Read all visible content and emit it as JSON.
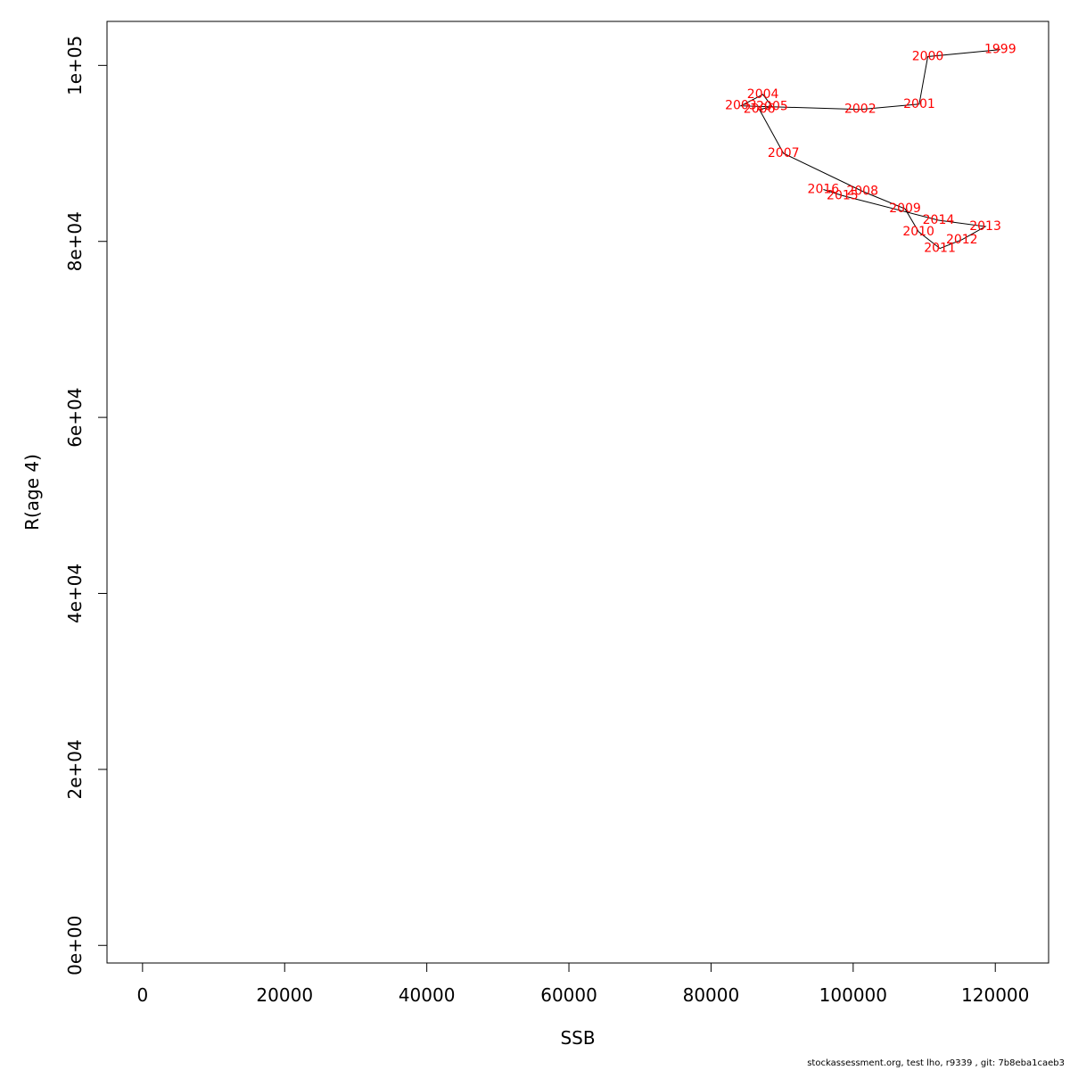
{
  "chart_data": {
    "type": "line",
    "xlabel": "SSB",
    "ylabel": "R(age 4)",
    "xlim": [
      -5000,
      127500
    ],
    "ylim": [
      -2000,
      105000
    ],
    "x_ticks": [
      0,
      20000,
      40000,
      60000,
      80000,
      100000,
      120000
    ],
    "x_tick_labels": [
      "0",
      "20000",
      "40000",
      "60000",
      "80000",
      "100000",
      "120000"
    ],
    "y_ticks": [
      0,
      20000,
      40000,
      60000,
      80000,
      100000
    ],
    "y_tick_labels": [
      "0e+00",
      "2e+04",
      "4e+04",
      "6e+04",
      "8e+04",
      "1e+05"
    ],
    "grid": false,
    "legend": "none",
    "label_color": "#ff0000",
    "line_color": "#000000",
    "points": [
      {
        "year": "1999",
        "x": 120700,
        "y": 101800
      },
      {
        "year": "2000",
        "x": 110500,
        "y": 101000
      },
      {
        "year": "2001",
        "x": 109300,
        "y": 95600
      },
      {
        "year": "2002",
        "x": 101000,
        "y": 95000
      },
      {
        "year": "2003",
        "x": 84200,
        "y": 95400
      },
      {
        "year": "2004",
        "x": 87300,
        "y": 96700
      },
      {
        "year": "2005",
        "x": 88600,
        "y": 95300
      },
      {
        "year": "2006",
        "x": 86800,
        "y": 95000
      },
      {
        "year": "2007",
        "x": 90200,
        "y": 90000
      },
      {
        "year": "2008",
        "x": 101300,
        "y": 85700
      },
      {
        "year": "2009",
        "x": 107300,
        "y": 83700
      },
      {
        "year": "2010",
        "x": 109200,
        "y": 81100
      },
      {
        "year": "2011",
        "x": 112200,
        "y": 79200
      },
      {
        "year": "2012",
        "x": 115300,
        "y": 80200
      },
      {
        "year": "2013",
        "x": 118600,
        "y": 81700
      },
      {
        "year": "2014",
        "x": 112000,
        "y": 82400
      },
      {
        "year": "2015",
        "x": 98500,
        "y": 85200
      },
      {
        "year": "2016",
        "x": 95800,
        "y": 85900
      }
    ]
  },
  "footer": "stockassessment.org, test  lho, r9339 , git: 7b8eba1caeb3"
}
